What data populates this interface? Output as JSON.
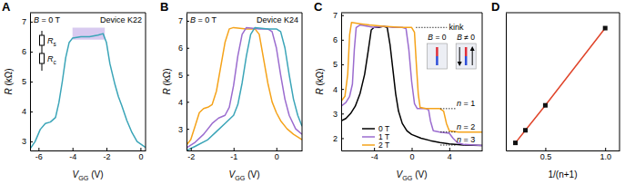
{
  "chart_data": [
    {
      "type": "line",
      "title": "A",
      "xlabel": "VGG (V)",
      "ylabel": "R (kΩ)",
      "xlim": [
        -6.5,
        0.3
      ],
      "ylim": [
        2.7,
        7.3
      ],
      "xticks": [
        -6,
        -4,
        -2,
        0
      ],
      "yticks": [
        3,
        4,
        5,
        6,
        7
      ],
      "highlight": {
        "x": [
          -4.0,
          -2.1
        ],
        "y": [
          6.4,
          6.8
        ]
      },
      "annotations": [
        {
          "text": "B = 0 T"
        },
        {
          "text": "Device K22"
        },
        {
          "text": "Rs"
        },
        {
          "text": "Rc"
        }
      ],
      "series": [
        {
          "color": "#3ba5b8",
          "x": [
            -6.5,
            -6.2,
            -5.9,
            -5.6,
            -5.3,
            -5.0,
            -4.8,
            -4.6,
            -4.4,
            -4.2,
            -4.0,
            -3.5,
            -3.0,
            -2.5,
            -2.2,
            -2.0,
            -1.8,
            -1.5,
            -1.3,
            -1.1,
            -0.8,
            -0.5,
            -0.2,
            0.3
          ],
          "values": [
            2.75,
            3.0,
            3.4,
            3.6,
            3.65,
            3.8,
            4.3,
            5.0,
            5.8,
            6.3,
            6.45,
            6.5,
            6.5,
            6.55,
            6.6,
            6.3,
            5.6,
            4.9,
            4.5,
            4.2,
            3.7,
            3.3,
            3.0,
            2.8
          ]
        }
      ]
    },
    {
      "type": "line",
      "title": "B",
      "xlabel": "VGG (V)",
      "ylabel": "R (kΩ)",
      "xlim": [
        -2.1,
        0.6
      ],
      "ylim": [
        2.2,
        7.3
      ],
      "xticks": [
        -2,
        -1,
        0
      ],
      "yticks": [
        3,
        4,
        5,
        6,
        7
      ],
      "annotations": [
        {
          "text": "B = 0 T"
        },
        {
          "text": "Device K24"
        }
      ],
      "series": [
        {
          "color": "#f5a31a",
          "x": [
            -2.1,
            -2.0,
            -1.9,
            -1.8,
            -1.7,
            -1.6,
            -1.5,
            -1.4,
            -1.3,
            -1.2,
            -1.1,
            -1.0,
            -0.7,
            -0.5,
            -0.4,
            -0.3,
            -0.2,
            -0.1,
            0.0,
            0.1,
            0.25,
            0.4,
            0.6
          ],
          "values": [
            2.4,
            2.6,
            3.1,
            3.6,
            3.75,
            3.8,
            3.9,
            4.4,
            5.3,
            6.2,
            6.7,
            6.75,
            6.7,
            6.7,
            6.5,
            5.6,
            4.7,
            4.0,
            3.6,
            3.3,
            3.0,
            2.8,
            2.6
          ]
        },
        {
          "color": "#9b6ccf",
          "x": [
            -2.1,
            -1.9,
            -1.7,
            -1.5,
            -1.35,
            -1.2,
            -1.1,
            -1.0,
            -0.9,
            -0.8,
            -0.7,
            -0.4,
            -0.2,
            -0.1,
            0.0,
            0.1,
            0.2,
            0.3,
            0.45,
            0.6
          ],
          "values": [
            2.3,
            2.5,
            2.8,
            3.2,
            3.4,
            3.5,
            3.8,
            4.6,
            5.7,
            6.5,
            6.75,
            6.7,
            6.7,
            6.6,
            6.0,
            5.0,
            4.1,
            3.5,
            3.0,
            2.8
          ]
        },
        {
          "color": "#3ba5b8",
          "x": [
            -2.1,
            -1.9,
            -1.6,
            -1.4,
            -1.2,
            -1.0,
            -0.9,
            -0.8,
            -0.7,
            -0.6,
            -0.5,
            -0.2,
            0.0,
            0.1,
            0.2,
            0.3,
            0.4,
            0.5,
            0.6
          ],
          "values": [
            2.2,
            2.35,
            2.6,
            2.9,
            3.2,
            3.5,
            3.9,
            4.7,
            5.7,
            6.5,
            6.75,
            6.7,
            6.7,
            6.6,
            6.0,
            5.0,
            4.1,
            3.5,
            3.1
          ]
        }
      ]
    },
    {
      "type": "line",
      "title": "C",
      "xlabel": "VGG (V)",
      "ylabel": "R (kΩ)",
      "xlim": [
        -7.5,
        7.5
      ],
      "ylim": [
        1.5,
        7.1
      ],
      "xticks": [
        -4,
        0,
        4
      ],
      "yticks": [
        2,
        3,
        4,
        5,
        6,
        7
      ],
      "legend": "lower left",
      "annotations": [
        {
          "text": "kink",
          "value": 6.5
        },
        {
          "text": "n = 1",
          "value": 3.2
        },
        {
          "text": "n = 2",
          "value": 2.25
        },
        {
          "text": "n = 3",
          "value": 1.72
        },
        {
          "text": "B = 0"
        },
        {
          "text": "B ≠ 0"
        }
      ],
      "series": [
        {
          "name": "0 T",
          "color": "#000000",
          "x": [
            -7.5,
            -7,
            -6.5,
            -6,
            -5.5,
            -5,
            -4.6,
            -4.3,
            -4,
            -3.5,
            -3,
            -2.6,
            -2.3,
            -2,
            -1.7,
            -1.4,
            -1,
            -0.5,
            0,
            1,
            2,
            3,
            4,
            5.5,
            7.5
          ],
          "values": [
            2.7,
            2.8,
            3.0,
            3.3,
            3.8,
            4.6,
            5.6,
            6.4,
            6.5,
            6.5,
            6.55,
            6.5,
            5.8,
            4.8,
            3.8,
            3.1,
            2.6,
            2.3,
            2.15,
            2.0,
            1.9,
            1.82,
            1.77,
            1.72,
            1.7
          ]
        },
        {
          "name": "1 T",
          "color": "#9b6ccf",
          "x": [
            -7.5,
            -7,
            -6.6,
            -6.3,
            -6.1,
            -5.9,
            -5.5,
            -4,
            -3,
            -2,
            -1,
            -0.6,
            -0.3,
            0,
            0.3,
            0.6,
            1.5,
            1.8,
            2.0,
            2.3,
            3,
            4,
            4.4,
            4.9,
            5.5,
            7.5
          ],
          "values": [
            3.3,
            3.45,
            3.7,
            4.2,
            5.6,
            6.5,
            6.6,
            6.5,
            6.55,
            6.5,
            6.5,
            6.45,
            5.6,
            4.3,
            3.4,
            3.2,
            3.2,
            3.15,
            2.7,
            2.3,
            2.25,
            2.2,
            2.0,
            1.8,
            1.75,
            1.7
          ]
        },
        {
          "name": "2 T",
          "color": "#f5a31a",
          "x": [
            -7.5,
            -7.1,
            -6.8,
            -6.6,
            -6.4,
            -5.5,
            -4.5,
            -3,
            -1,
            0,
            0.3,
            0.5,
            0.7,
            0.9,
            1.5,
            3.0,
            3.4,
            3.7,
            4.0,
            5,
            7.5
          ],
          "values": [
            3.5,
            3.7,
            4.6,
            6.2,
            6.7,
            6.65,
            6.6,
            6.55,
            6.5,
            6.5,
            6.3,
            5.0,
            3.8,
            3.25,
            3.2,
            3.2,
            3.1,
            2.6,
            2.3,
            2.25,
            2.25
          ]
        }
      ]
    },
    {
      "type": "line",
      "title": "D",
      "xlabel": "1/(n+1)",
      "xlim": [
        0.17,
        1.12
      ],
      "ylim": [
        1.4,
        7.2
      ],
      "xticks": [
        0.5,
        {
          "value": 1,
          "label": "1.0"
        }
      ],
      "tick_labels": "x",
      "series": [
        {
          "color": "#e0442a",
          "marker": "square",
          "x": [
            0.25,
            0.3333,
            0.5,
            1.0
          ],
          "values": [
            1.72,
            2.25,
            3.3,
            6.55
          ]
        }
      ]
    }
  ]
}
